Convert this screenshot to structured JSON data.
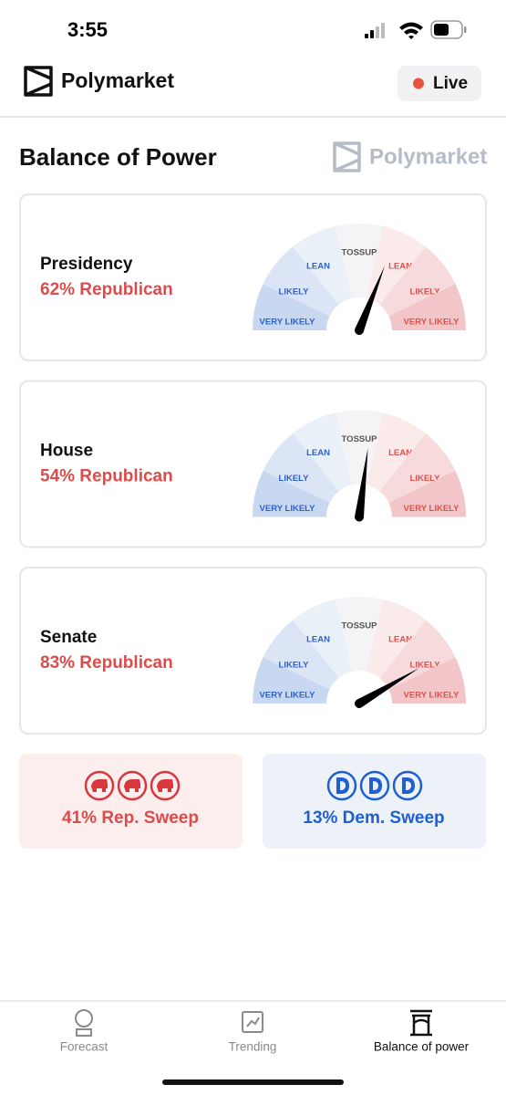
{
  "status_bar": {
    "time": "3:55"
  },
  "header": {
    "brand": "Polymarket",
    "live_button": "Live"
  },
  "page": {
    "title": "Balance of Power",
    "watermark": "Polymarket"
  },
  "gauge_labels": [
    "VERY LIKELY",
    "LIKELY",
    "LEAN",
    "TOSSUP",
    "LEAN",
    "LIKELY",
    "VERY LIKELY"
  ],
  "races": [
    {
      "name": "Presidency",
      "odds_label": "62% Republican",
      "republican_pct": 62
    },
    {
      "name": "House",
      "odds_label": "54% Republican",
      "republican_pct": 54
    },
    {
      "name": "Senate",
      "odds_label": "83% Republican",
      "republican_pct": 83
    }
  ],
  "sweeps": [
    {
      "label": "41% Rep. Sweep"
    },
    {
      "label": "13% Dem. Sweep"
    }
  ],
  "nav": [
    {
      "label": "Forecast",
      "active": false
    },
    {
      "label": "Trending",
      "active": false
    },
    {
      "label": "Balance of power",
      "active": true
    }
  ]
}
